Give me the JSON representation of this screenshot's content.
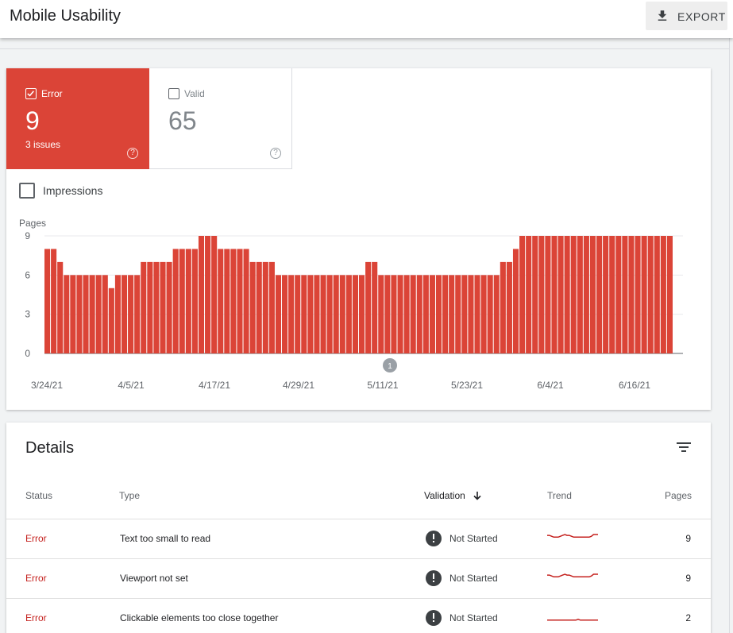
{
  "header": {
    "title": "Mobile Usability",
    "export_label": "EXPORT"
  },
  "tiles": {
    "error": {
      "label": "Error",
      "count": "9",
      "sub": "3 issues",
      "checked": true
    },
    "valid": {
      "label": "Valid",
      "count": "65",
      "checked": false
    }
  },
  "impressions_label": "Impressions",
  "colors": {
    "error": "#db4437",
    "status_text": "#c5221f",
    "trend": "#c5221f"
  },
  "chart_data": {
    "type": "bar",
    "ylabel": "Pages",
    "yticks": [
      0,
      3,
      6,
      9
    ],
    "ylim": [
      0,
      9
    ],
    "xticks": [
      "3/24/21",
      "4/5/21",
      "4/17/21",
      "4/29/21",
      "5/11/21",
      "5/23/21",
      "6/4/21",
      "6/16/21"
    ],
    "annotation": {
      "label": "1",
      "date": "5/11/21"
    },
    "series": [
      {
        "values": [
          8,
          8,
          7,
          6,
          6,
          6,
          6,
          6,
          6,
          6,
          5,
          6,
          6,
          6,
          6,
          7,
          7,
          7,
          7,
          7,
          8,
          8,
          8,
          8,
          9,
          9,
          9,
          8,
          8,
          8,
          8,
          8,
          7,
          7,
          7,
          7,
          6,
          6,
          6,
          6,
          6,
          6,
          6,
          6,
          6,
          6,
          6,
          6,
          6,
          6,
          7,
          7,
          6,
          6,
          6,
          6,
          6,
          6,
          6,
          6,
          6,
          6,
          6,
          6,
          6,
          6,
          6,
          6,
          6,
          6,
          6,
          7,
          7,
          8,
          9,
          9,
          9,
          9,
          9,
          9,
          9,
          9,
          9,
          9,
          9,
          9,
          9,
          9,
          9,
          9,
          9,
          9,
          9,
          9,
          9,
          9,
          9,
          9
        ]
      }
    ]
  },
  "details": {
    "title": "Details",
    "columns": {
      "status": "Status",
      "type": "Type",
      "validation": "Validation",
      "trend": "Trend",
      "pages": "Pages"
    },
    "rows": [
      {
        "status": "Error",
        "type": "Text too small to read",
        "validation": "Not Started",
        "pages": "9",
        "trend": [
          8,
          8,
          7,
          6,
          6,
          6,
          7,
          8,
          9,
          8,
          8,
          7,
          6,
          6,
          6,
          6,
          6,
          6,
          6,
          6,
          7,
          9,
          9,
          9
        ]
      },
      {
        "status": "Error",
        "type": "Viewport not set",
        "validation": "Not Started",
        "pages": "9",
        "trend": [
          8,
          8,
          7,
          6,
          6,
          6,
          7,
          8,
          9,
          8,
          8,
          7,
          6,
          6,
          6,
          6,
          6,
          6,
          6,
          6,
          7,
          9,
          9,
          9
        ]
      },
      {
        "status": "Error",
        "type": "Clickable elements too close together",
        "validation": "Not Started",
        "pages": "2",
        "trend": [
          2,
          2,
          2,
          2,
          2,
          2,
          2,
          2,
          2,
          2,
          2,
          2,
          2,
          2,
          3,
          2,
          2,
          2,
          2,
          2,
          2,
          2,
          2,
          2
        ]
      }
    ]
  }
}
